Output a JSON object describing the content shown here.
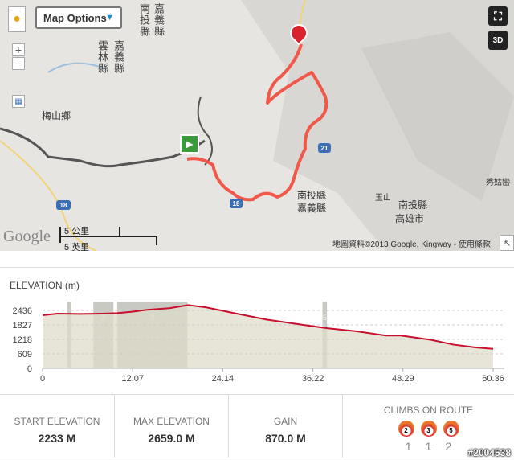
{
  "map": {
    "options_label": "Map Options",
    "labels": [
      "南投縣",
      "嘉義縣",
      "雲林縣",
      "嘉義縣",
      "梅山鄉",
      "南投縣",
      "嘉義縣",
      "玉山",
      "南投縣",
      "高雄市",
      "秀姑巒"
    ],
    "highways": [
      "18",
      "21",
      "18"
    ],
    "scale_km": "5 公里",
    "scale_mi": "5 英里",
    "attribution": "地圖資料©2013 Google, Kingway - ",
    "terms_link": "使用條款",
    "google_logo": "Google",
    "btn_3d": "3D",
    "zoom_in": "+",
    "zoom_out": "−",
    "route_color": "#f0584a"
  },
  "elevation": {
    "title": "ELEVATION (m)"
  },
  "chart_data": {
    "type": "area",
    "title": "ELEVATION (m)",
    "xlim": [
      0,
      60.36
    ],
    "ylim": [
      0,
      2436
    ],
    "xticks": [
      "0",
      "12.07",
      "24.14",
      "36.22",
      "48.29",
      "60.36"
    ],
    "yticks": [
      "0",
      "609",
      "1218",
      "1827",
      "2436"
    ],
    "grid": true,
    "line_color": "#c8102e",
    "x": [
      0,
      2,
      5,
      8,
      10,
      12,
      14,
      17,
      19.5,
      22,
      26,
      30,
      34,
      38,
      42,
      46,
      48,
      52,
      55,
      58,
      60.36
    ],
    "y": [
      2233,
      2300,
      2290,
      2300,
      2320,
      2380,
      2460,
      2530,
      2659,
      2560,
      2300,
      2050,
      1870,
      1690,
      1560,
      1380,
      1380,
      1200,
      1000,
      880,
      820
    ],
    "climb_bands": [
      {
        "start": 3.3,
        "end": 3.8,
        "category": ""
      },
      {
        "start": 6.8,
        "end": 9.5,
        "category": "3"
      },
      {
        "start": 10.0,
        "end": 19.4,
        "category": "2"
      },
      {
        "start": 37.5,
        "end": 38.1,
        "category": "5"
      }
    ]
  },
  "stats": {
    "start_label": "START ELEVATION",
    "start_value": "2233 M",
    "max_label": "MAX ELEVATION",
    "max_value": "2659.0 M",
    "gain_label": "GAIN",
    "gain_value": "870.0 M",
    "climbs_label": "CLIMBS ON ROUTE",
    "climbs": [
      {
        "cat": "2",
        "count": "1"
      },
      {
        "cat": "3",
        "count": "1"
      },
      {
        "cat": "5",
        "count": "2"
      }
    ]
  },
  "watermark": "#2004538"
}
